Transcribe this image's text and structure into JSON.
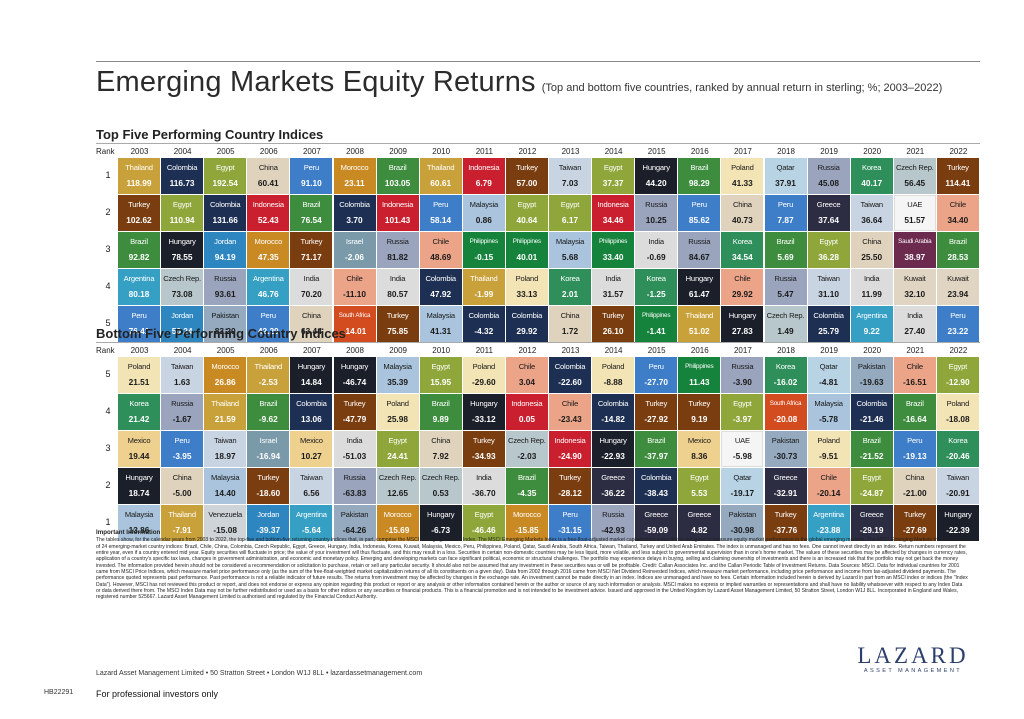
{
  "title": "Emerging Markets Equity Returns",
  "subtitle": "(Top and bottom five countries, ranked by annual return in sterling; %; 2003–2022)",
  "years": [
    "2003",
    "2004",
    "2005",
    "2006",
    "2007",
    "2008",
    "2009",
    "2010",
    "2011",
    "2012",
    "2013",
    "2014",
    "2015",
    "2016",
    "2017",
    "2018",
    "2019",
    "2020",
    "2021",
    "2022"
  ],
  "top_section_title": "Top Five Performing Country Indices",
  "bottom_section_title": "Bottom Five Performing Country Indices",
  "rank_label": "Rank",
  "colors": {
    "Thailand": "#c9a13a",
    "Turkey": "#7a3d10",
    "Brazil": "#3e8d3e",
    "Argentina": "#35a0c4",
    "Peru": "#3e7ec8",
    "Colombia": "#1d2f52",
    "Egypt": "#8fa63a",
    "Jordan": "#2e86c1",
    "Pakistan": "#95aabf",
    "China": "#dfd3bd",
    "Hungary": "#1b1f29",
    "Indonesia": "#c91f2e",
    "Morocco": "#c98a24",
    "Russia": "#9aa4bd",
    "Korea": "#2f8f5b",
    "Czech Rep.": "#b8c7cc",
    "Taiwan": "#c9d4e2",
    "India": "#dcdcdc",
    "Chile": "#eca489",
    "South Africa": "#d24c20",
    "Malaysia": "#a9c4dc",
    "Mexico": "#eed08f",
    "Israel": "#7a9aaa",
    "Philippines": "#16833d",
    "Poland": "#f3e4b5",
    "Qatar": "#b7d3e4",
    "Greece": "#2c2c42",
    "UAE": "#f5f5f5",
    "Saudi Arabia": "#6b2a4e",
    "Kuwait": "#e0d4c3",
    "Venezuela": "#cfd4d8"
  },
  "top": [
    [
      [
        "Thailand",
        "118.99"
      ],
      [
        "Colombia",
        "116.73"
      ],
      [
        "Egypt",
        "192.54"
      ],
      [
        "China",
        "60.41"
      ],
      [
        "Peru",
        "91.10"
      ],
      [
        "Morocco",
        "23.11"
      ],
      [
        "Brazil",
        "103.05"
      ],
      [
        "Thailand",
        "60.61"
      ],
      [
        "Indonesia",
        "6.79"
      ],
      [
        "Turkey",
        "57.00"
      ],
      [
        "Taiwan",
        "7.03"
      ],
      [
        "Egypt",
        "37.37"
      ],
      [
        "Hungary",
        "44.20"
      ],
      [
        "Brazil",
        "98.29"
      ],
      [
        "Poland",
        "41.33"
      ],
      [
        "Qatar",
        "37.91"
      ],
      [
        "Russia",
        "45.08"
      ],
      [
        "Korea",
        "40.17"
      ],
      [
        "Czech Rep.",
        "56.45"
      ],
      [
        "Turkey",
        "114.41"
      ]
    ],
    [
      [
        "Turkey",
        "102.62"
      ],
      [
        "Egypt",
        "110.94"
      ],
      [
        "Colombia",
        "131.66"
      ],
      [
        "Indonesia",
        "52.43"
      ],
      [
        "Brazil",
        "76.54"
      ],
      [
        "Colombia",
        "3.70"
      ],
      [
        "Indonesia",
        "101.43"
      ],
      [
        "Peru",
        "58.14"
      ],
      [
        "Malaysia",
        "0.86"
      ],
      [
        "Egypt",
        "40.64"
      ],
      [
        "Egypt",
        "6.17"
      ],
      [
        "Indonesia",
        "34.46"
      ],
      [
        "Russia",
        "10.25"
      ],
      [
        "Peru",
        "85.62"
      ],
      [
        "China",
        "40.73"
      ],
      [
        "Peru",
        "7.87"
      ],
      [
        "Greece",
        "37.64"
      ],
      [
        "Taiwan",
        "36.64"
      ],
      [
        "UAE",
        "51.57"
      ],
      [
        "Chile",
        "34.40"
      ]
    ],
    [
      [
        "Brazil",
        "92.82"
      ],
      [
        "Hungary",
        "78.55"
      ],
      [
        "Jordan",
        "94.19"
      ],
      [
        "Morocco",
        "47.35"
      ],
      [
        "Turkey",
        "71.17"
      ],
      [
        "Israel",
        "-2.06"
      ],
      [
        "Russia",
        "81.82"
      ],
      [
        "Chile",
        "48.69"
      ],
      [
        "Philippines",
        "-0.15"
      ],
      [
        "Philippines",
        "40.01"
      ],
      [
        "Malaysia",
        "5.68"
      ],
      [
        "Philippines",
        "33.40"
      ],
      [
        "India",
        "-0.69"
      ],
      [
        "Russia",
        "84.67"
      ],
      [
        "Korea",
        "34.54"
      ],
      [
        "Brazil",
        "5.69"
      ],
      [
        "Egypt",
        "36.28"
      ],
      [
        "China",
        "25.50"
      ],
      [
        "Saudi Arabia",
        "38.97"
      ],
      [
        "Brazil",
        "28.53"
      ]
    ],
    [
      [
        "Argentina",
        "80.18"
      ],
      [
        "Czech Rep.",
        "73.08"
      ],
      [
        "Russia",
        "93.61"
      ],
      [
        "Argentina",
        "46.76"
      ],
      [
        "India",
        "70.20"
      ],
      [
        "Chile",
        "-11.10"
      ],
      [
        "India",
        "80.57"
      ],
      [
        "Colombia",
        "47.92"
      ],
      [
        "Thailand",
        "-1.99"
      ],
      [
        "Poland",
        "33.13"
      ],
      [
        "Korea",
        "2.01"
      ],
      [
        "India",
        "31.57"
      ],
      [
        "Korea",
        "-1.25"
      ],
      [
        "Hungary",
        "61.47"
      ],
      [
        "Chile",
        "29.92"
      ],
      [
        "Russia",
        "5.47"
      ],
      [
        "Taiwan",
        "31.10"
      ],
      [
        "India",
        "11.99"
      ],
      [
        "Kuwait",
        "32.10"
      ],
      [
        "Kuwait",
        "23.94"
      ]
    ],
    [
      [
        "Peru",
        "76.41"
      ],
      [
        "Jordan",
        "50.24"
      ],
      [
        "Pakistan",
        "83.20"
      ],
      [
        "Peru",
        "42.20"
      ],
      [
        "China",
        "63.44"
      ],
      [
        "South Africa",
        "-14.01"
      ],
      [
        "Turkey",
        "75.85"
      ],
      [
        "Malaysia",
        "41.31"
      ],
      [
        "Colombia",
        "-4.32"
      ],
      [
        "Colombia",
        "29.92"
      ],
      [
        "China",
        "1.72"
      ],
      [
        "Turkey",
        "26.10"
      ],
      [
        "Philippines",
        "-1.41"
      ],
      [
        "Thailand",
        "51.02"
      ],
      [
        "Hungary",
        "27.83"
      ],
      [
        "Czech Rep.",
        "1.49"
      ],
      [
        "Colombia",
        "25.79"
      ],
      [
        "Argentina",
        "9.22"
      ],
      [
        "India",
        "27.40"
      ],
      [
        "Peru",
        "23.22"
      ]
    ]
  ],
  "bottom": [
    [
      [
        "Poland",
        "21.51"
      ],
      [
        "Taiwan",
        "1.63"
      ],
      [
        "Morocco",
        "26.86"
      ],
      [
        "Thailand",
        "-2.53"
      ],
      [
        "Hungary",
        "14.84"
      ],
      [
        "Hungary",
        "-46.74"
      ],
      [
        "Malaysia",
        "35.39"
      ],
      [
        "Egypt",
        "15.95"
      ],
      [
        "Poland",
        "-29.60"
      ],
      [
        "Chile",
        "3.04"
      ],
      [
        "Colombia",
        "-22.60"
      ],
      [
        "Poland",
        "-8.88"
      ],
      [
        "Peru",
        "-27.70"
      ],
      [
        "Philippines",
        "11.43"
      ],
      [
        "Russia",
        "-3.90"
      ],
      [
        "Korea",
        "-16.02"
      ],
      [
        "Qatar",
        "-4.81"
      ],
      [
        "Pakistan",
        "-19.63"
      ],
      [
        "Chile",
        "-16.51"
      ],
      [
        "Egypt",
        "-12.90"
      ]
    ],
    [
      [
        "Korea",
        "21.42"
      ],
      [
        "Russia",
        "-1.67"
      ],
      [
        "Thailand",
        "21.59"
      ],
      [
        "Brazil",
        "-9.62"
      ],
      [
        "Colombia",
        "13.06"
      ],
      [
        "Turkey",
        "-47.79"
      ],
      [
        "Poland",
        "25.98"
      ],
      [
        "Brazil",
        "9.89"
      ],
      [
        "Hungary",
        "-33.12"
      ],
      [
        "Indonesia",
        "0.05"
      ],
      [
        "Chile",
        "-23.43"
      ],
      [
        "Colombia",
        "-14.82"
      ],
      [
        "Turkey",
        "-27.92"
      ],
      [
        "Turkey",
        "9.19"
      ],
      [
        "Egypt",
        "-3.97"
      ],
      [
        "South Africa",
        "-20.08"
      ],
      [
        "Malaysia",
        "-5.78"
      ],
      [
        "Colombia",
        "-21.46"
      ],
      [
        "Brazil",
        "-16.64"
      ],
      [
        "Poland",
        "-18.08"
      ]
    ],
    [
      [
        "Mexico",
        "19.44"
      ],
      [
        "Peru",
        "-3.95"
      ],
      [
        "Taiwan",
        "18.97"
      ],
      [
        "Israel",
        "-16.94"
      ],
      [
        "Mexico",
        "10.27"
      ],
      [
        "India",
        "-51.03"
      ],
      [
        "Egypt",
        "24.41"
      ],
      [
        "China",
        "7.92"
      ],
      [
        "Turkey",
        "-34.93"
      ],
      [
        "Czech Rep.",
        "-2.03"
      ],
      [
        "Indonesia",
        "-24.90"
      ],
      [
        "Hungary",
        "-22.93"
      ],
      [
        "Brazil",
        "-37.97"
      ],
      [
        "Mexico",
        "8.36"
      ],
      [
        "UAE",
        "-5.98"
      ],
      [
        "Pakistan",
        "-30.73"
      ],
      [
        "Poland",
        "-9.51"
      ],
      [
        "Brazil",
        "-21.52"
      ],
      [
        "Peru",
        "-19.13"
      ],
      [
        "Korea",
        "-20.46"
      ]
    ],
    [
      [
        "Hungary",
        "18.74"
      ],
      [
        "China",
        "-5.00"
      ],
      [
        "Malaysia",
        "14.40"
      ],
      [
        "Turkey",
        "-18.60"
      ],
      [
        "Taiwan",
        "6.56"
      ],
      [
        "Russia",
        "-63.83"
      ],
      [
        "Czech Rep.",
        "12.65"
      ],
      [
        "Czech Rep.",
        "0.53"
      ],
      [
        "India",
        "-36.70"
      ],
      [
        "Brazil",
        "-4.35"
      ],
      [
        "Turkey",
        "-28.12"
      ],
      [
        "Greece",
        "-36.22"
      ],
      [
        "Colombia",
        "-38.43"
      ],
      [
        "Egypt",
        "5.53"
      ],
      [
        "Qatar",
        "-19.17"
      ],
      [
        "Greece",
        "-32.91"
      ],
      [
        "Chile",
        "-20.14"
      ],
      [
        "Egypt",
        "-24.87"
      ],
      [
        "China",
        "-21.00"
      ],
      [
        "Taiwan",
        "-20.91"
      ]
    ],
    [
      [
        "Malaysia",
        "13.86"
      ],
      [
        "Thailand",
        "-7.91"
      ],
      [
        "Venezuela",
        "-15.08"
      ],
      [
        "Jordan",
        "-39.37"
      ],
      [
        "Argentina",
        "-5.64"
      ],
      [
        "Pakistan",
        "-64.26"
      ],
      [
        "Morocco",
        "-15.69"
      ],
      [
        "Hungary",
        "-6.73"
      ],
      [
        "Egypt",
        "-46.46"
      ],
      [
        "Morocco",
        "-15.85"
      ],
      [
        "Peru",
        "-31.15"
      ],
      [
        "Russia",
        "-42.93"
      ],
      [
        "Greece",
        "-59.09"
      ],
      [
        "Greece",
        "4.82"
      ],
      [
        "Pakistan",
        "-30.98"
      ],
      [
        "Turkey",
        "-37.76"
      ],
      [
        "Argentina",
        "-23.88"
      ],
      [
        "Greece",
        "-29.19"
      ],
      [
        "Turkey",
        "-27.69"
      ],
      [
        "Hungary",
        "-22.39"
      ]
    ]
  ],
  "top_ranks": [
    "1",
    "2",
    "3",
    "4",
    "5"
  ],
  "bottom_ranks": [
    "5",
    "4",
    "3",
    "2",
    "1"
  ],
  "important_title": "Important Information",
  "important_text": "The tables show, for the calendar years from 2003 to 2022, the top-five and bottom-five returning country indices that, in part, comprise the MSCI Emerging Markets Index. The MSCI Emerging Markets Index is a free-float-adjusted market capitalization index that is designed to measure equity market performance in the global emerging markets. The MSCI Emerging Markets Index consists of 24 emerging-market country indices: Brazil, Chile, China, Colombia, Czech Republic, Egypt, Greece, Hungary, India, Indonesia, Korea, Kuwait, Malaysia, Mexico, Peru, Philippines, Poland, Qatar, Saudi Arabia, South Africa, Taiwan, Thailand, Turkey and United Arab Emirates. The index is unmanaged and has no fees. One cannot invest directly in an index. Return numbers represent the entire year, even if a country entered mid year. Equity securities will fluctuate in price; the value of your investment will thus fluctuate, and this may result in a loss. Securities in certain non-domestic countries may be less liquid, more volatile, and less subject to governmental supervision than in one's home market. The values of these securities may be affected by changes in currency rates, application of a country's specific tax laws, changes in government administration, and economic and monetary policy. Emerging and developing markets can face significant political, economic or structural challenges. The portfolio may experience delays in buying, selling and claiming ownership of investments and there is an increased risk that the portfolio may not get back the money invested. The information provided herein should not be considered a recommendation or solicitation to purchase, retain or sell any particular security. It should also not be assumed that any investment in these securities was or will be profitable. Credit: Callan Associates Inc. and the Callan Periodic Table of Investment Returns. Data Sources: MSCI. Data for individual countries for 2001 came from MSCI Price Indices, which measure market price performance only (as the sum of the free-float-weighted market capitalization returns of all its constituents on a given day). Data from 2002 through 2016 came from MSCI Net Dividend Reinvested Indices, which measure market performance, including price performance and income from tax-adjusted dividend payments. The performance quoted represents past performance. Past performance is not a reliable indicator of future results. The returns from investment may be affected by changes in the exchange rate. An investment cannot be made directly in an index. Indices are unmanaged and have no fees. Certain information included herein is derived by Lazard in part from an MSCI index or indices (the \"Index Data\"). However, MSCI has not reviewed this product or report, and does not endorse or express any opinion regarding this product or report or any analysis or other information contained herein or the author or source of any such information or analysis. MSCI makes no express or implied warranties or representations and shall have no liability whatsoever with respect to any Index Data or data derived there from. The MSCI Index Data may not be further redistributed or used as a basis for other indices or any securities or financial products. This is a financial promotion and is not intended to be investment advice. Issued and approved in the United Kingdom by Lazard Asset Management Limited, 50 Stratton Street, London W1J 8LL. Incorporated in England and Wales, registered number 525667. Lazard Asset Management Limited is authorised and regulated by the Financial Conduct Authority.",
  "address": "Lazard Asset Management Limited • 50 Stratton Street • London W1J 8LL • lazardassetmanagement.com",
  "doc_code": "HB22291",
  "professional": "For professional investors only",
  "logo_word": "LAZARD",
  "logo_sub": "ASSET MANAGEMENT"
}
